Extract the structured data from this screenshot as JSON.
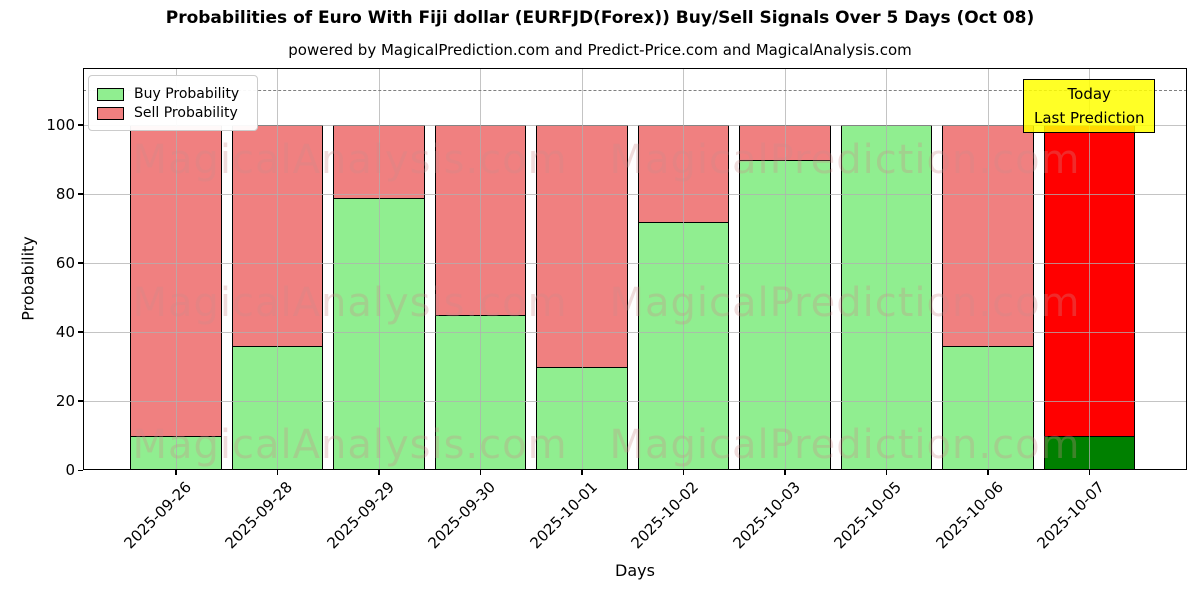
{
  "title": "Probabilities of Euro With Fiji dollar (EURFJD(Forex)) Buy/Sell Signals Over 5 Days (Oct 08)",
  "subtitle": "powered by MagicalPrediction.com and Predict-Price.com and MagicalAnalysis.com",
  "legend": {
    "buy_label": "Buy Probability",
    "sell_label": "Sell Probability"
  },
  "annotation": {
    "line1": "Today",
    "line2": "Last Prediction"
  },
  "watermarks": {
    "left_text": "MagicalAnalysis.com",
    "right_text": "MagicalPrediction.com"
  },
  "colors": {
    "buy": "#90EE90",
    "sell": "#F08080",
    "today_buy": "#008000",
    "today_sell": "#FF0000",
    "annotation_bg": "#FFFF00",
    "grid": "#B0B0B0",
    "dashed_line": "#7F7F7F"
  },
  "chart_data": {
    "type": "bar",
    "stacked": true,
    "title": "Probabilities of Euro With Fiji dollar (EURFJD(Forex)) Buy/Sell Signals Over 5 Days (Oct 08)",
    "subtitle": "powered by MagicalPrediction.com and Predict-Price.com and MagicalAnalysis.com",
    "xlabel": "Days",
    "ylabel": "Probability",
    "categories": [
      "2025-09-26",
      "2025-09-28",
      "2025-09-29",
      "2025-09-30",
      "2025-10-01",
      "2025-10-02",
      "2025-10-03",
      "2025-10-05",
      "2025-10-06",
      "2025-10-07"
    ],
    "series": [
      {
        "name": "Buy Probability",
        "color": "#90EE90",
        "values": [
          10,
          36,
          79,
          45,
          30,
          72,
          90,
          100,
          36,
          10
        ]
      },
      {
        "name": "Sell Probability",
        "color": "#F08080",
        "values": [
          90,
          64,
          21,
          55,
          70,
          28,
          10,
          0,
          64,
          90
        ]
      }
    ],
    "today_index": 9,
    "today_colors": {
      "buy": "#008000",
      "sell": "#FF0000"
    },
    "ylim": [
      0,
      116.5
    ],
    "yticks": [
      0,
      20,
      40,
      60,
      80,
      100
    ],
    "dashed_line_y": 110,
    "grid": true,
    "legend_position": "upper left"
  }
}
